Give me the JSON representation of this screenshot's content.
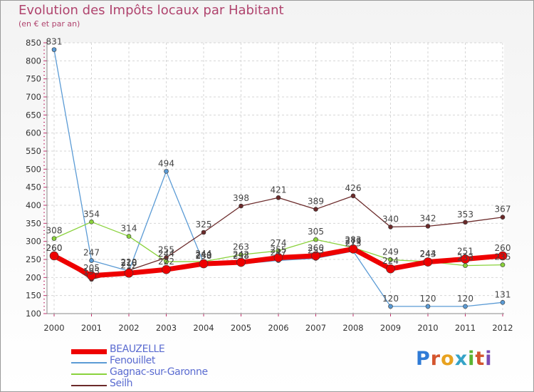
{
  "title": "Evolution des Impôts locaux par Habitant",
  "subtitle": "(en € et par an)",
  "logo": {
    "letters": [
      "P",
      "r",
      "o",
      "x",
      "i",
      "t",
      "i"
    ],
    "colors": [
      "#2f7bd6",
      "#d4552e",
      "#e8a21f",
      "#35a3c7",
      "#5cb432",
      "#d4552e",
      "#7b4bb5"
    ]
  },
  "chart_data": {
    "type": "line",
    "title": "Evolution des Impôts locaux par Habitant",
    "subtitle": "(en € et par an)",
    "xlabel": "",
    "ylabel": "",
    "ylim": [
      100,
      850
    ],
    "yticks": [
      100,
      150,
      200,
      250,
      300,
      350,
      400,
      450,
      500,
      550,
      600,
      650,
      700,
      750,
      800,
      850
    ],
    "grid": true,
    "legend_position": "bottom-left",
    "categories": [
      "2000",
      "2001",
      "2002",
      "2003",
      "2004",
      "2005",
      "2006",
      "2007",
      "2008",
      "2009",
      "2010",
      "2011",
      "2012"
    ],
    "series": [
      {
        "name": "Fenouillet",
        "color": "#5b9bd5",
        "width": 1.3,
        "values": [
          831,
          247,
          218,
          494,
          240,
          238,
          247,
          253,
          273,
          120,
          120,
          120,
          131
        ],
        "labels": [
          "831",
          "247",
          "218",
          "494",
          "240",
          "238",
          "247",
          "253",
          "273",
          "120",
          "120",
          "120",
          "131"
        ]
      },
      {
        "name": "Gagnac-sur-Garonne",
        "color": "#8ad23c",
        "width": 1.3,
        "values": [
          308,
          354,
          314,
          244,
          244,
          263,
          274,
          305,
          283,
          249,
          244,
          233,
          235
        ],
        "labels": [
          "308",
          "354",
          "314",
          "244",
          "244",
          "263",
          "274",
          "305",
          "283",
          "249",
          "244",
          "233",
          "235"
        ]
      },
      {
        "name": "Seilh",
        "color": "#6b2a2a",
        "width": 1.3,
        "values": [
          260,
          195,
          220,
          255,
          325,
          398,
          421,
          389,
          426,
          340,
          342,
          353,
          367
        ],
        "labels": [
          "260",
          "195",
          "220",
          "255",
          "325",
          "398",
          "421",
          "389",
          "426",
          "340",
          "342",
          "353",
          "367"
        ]
      },
      {
        "name": "BEAUZELLE",
        "color": "#ee0000",
        "width": 7,
        "values": [
          260,
          205,
          212,
          222,
          238,
          242,
          255,
          260,
          279,
          224,
          243,
          251,
          260
        ],
        "labels": [
          "260",
          "205",
          "212",
          "222",
          "238",
          "242",
          "255",
          "260",
          "279",
          "224",
          "243",
          "251",
          "260"
        ]
      }
    ],
    "legend": [
      "BEAUZELLE",
      "Fenouillet",
      "Gagnac-sur-Garonne",
      "Seilh"
    ]
  }
}
